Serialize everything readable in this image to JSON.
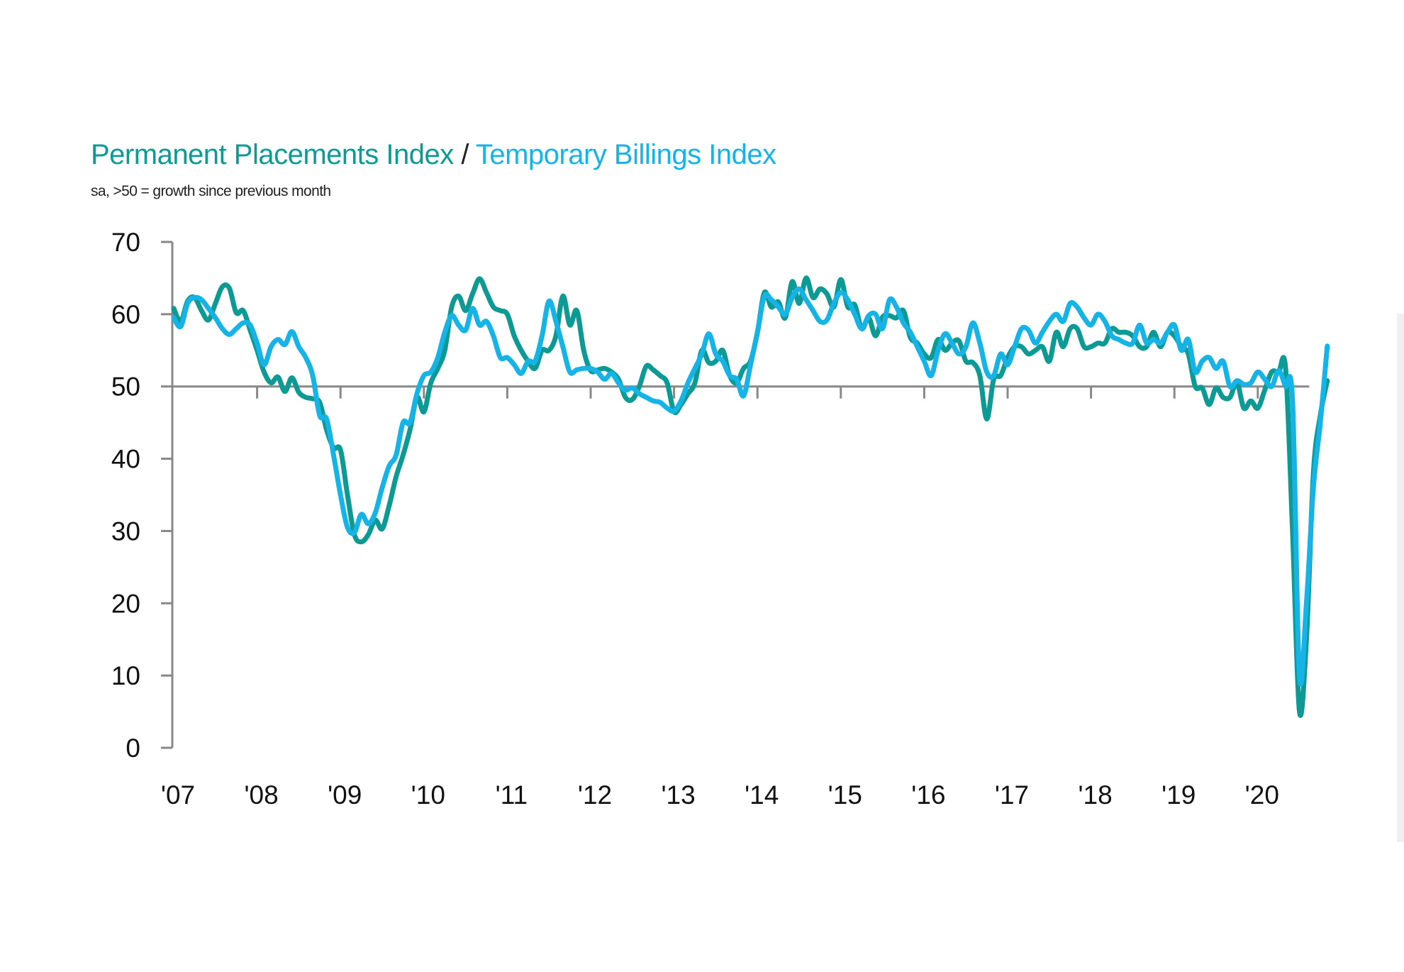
{
  "chart_data": {
    "type": "line",
    "title": "Permanent Placements Index / Temporary Billings Index",
    "title_parts": [
      {
        "text": "Permanent Placements Index",
        "color": "#0e9a94"
      },
      {
        "text": " / ",
        "color": "#222222"
      },
      {
        "text": "Temporary Billings Index",
        "color": "#16b3e6"
      }
    ],
    "subtitle": "sa, >50 = growth since previous month",
    "xlabel": "",
    "ylabel": "",
    "ylim": [
      0,
      70
    ],
    "yticks": [
      0,
      10,
      20,
      30,
      40,
      50,
      60,
      70
    ],
    "ytick_labels": [
      "0",
      "10",
      "20",
      "30",
      "40",
      "50",
      "60",
      "70"
    ],
    "x_unit": "months since Jan 2007",
    "xlim": [
      0,
      163
    ],
    "xticks": [
      0,
      12,
      24,
      36,
      48,
      60,
      72,
      84,
      96,
      108,
      120,
      132,
      144,
      156
    ],
    "xtick_labels": [
      "'07",
      "'08",
      "'09",
      "'10",
      "'11",
      "'12",
      "'13",
      "'14",
      "'15",
      "'16",
      "'17",
      "'18",
      "'19",
      "'20"
    ],
    "reference_line": 50,
    "grid": false,
    "legend": "none (series named in title by color)",
    "series": [
      {
        "name": "Permanent Placements Index",
        "color": "#0e9a94",
        "values": [
          60.8,
          59.0,
          61.8,
          62.3,
          60.5,
          59.2,
          61.5,
          63.8,
          63.6,
          60.2,
          60.5,
          57.8,
          55.0,
          52.0,
          50.5,
          51.3,
          49.3,
          51.2,
          49.2,
          48.5,
          48.3,
          47.8,
          44.0,
          41.5,
          41.2,
          35.0,
          29.5,
          28.5,
          29.5,
          31.5,
          30.3,
          33.5,
          37.5,
          40.5,
          44.0,
          48.5,
          46.5,
          50.5,
          52.5,
          55.0,
          61.0,
          62.5,
          60.5,
          62.8,
          64.9,
          63.0,
          61.0,
          60.5,
          60.0,
          57.0,
          55.0,
          53.5,
          52.5,
          55.0,
          55.0,
          57.0,
          62.5,
          58.5,
          60.5,
          55.0,
          52.2,
          52.3,
          52.5,
          52.0,
          51.0,
          48.5,
          48.2,
          50.0,
          52.8,
          52.3,
          51.5,
          50.5,
          46.5,
          47.5,
          49.0,
          50.5,
          55.0,
          53.3,
          53.5,
          55.0,
          51.5,
          50.5,
          52.5,
          53.5,
          57.5,
          63.0,
          61.0,
          61.7,
          59.5,
          64.5,
          61.5,
          65.0,
          62.3,
          63.5,
          62.8,
          61.0,
          64.8,
          61.0,
          61.3,
          58.0,
          59.5,
          57.0,
          59.6,
          59.8,
          59.5,
          60.5,
          56.8,
          56.0,
          54.5,
          54.0,
          56.5,
          55.0,
          56.0,
          56.3,
          53.5,
          53.3,
          51.5,
          45.5,
          51.0,
          51.5,
          54.0,
          55.5,
          55.5,
          54.5,
          55.0,
          55.5,
          53.5,
          57.5,
          55.5,
          58.0,
          58.0,
          55.5,
          55.5,
          56.0,
          56.0,
          58.0,
          57.5,
          57.5,
          57.0,
          55.5,
          55.5,
          57.5,
          55.5,
          57.5,
          57.0,
          55.5,
          54.5,
          50.0,
          49.8,
          47.5,
          49.8,
          48.5,
          48.5,
          50.5,
          47.0,
          48.0,
          47.0,
          49.5,
          52.0,
          52.0,
          52.5,
          30.0,
          5.0,
          15.0,
          38.0,
          46.0,
          50.8
        ]
      },
      {
        "name": "Temporary Billings Index",
        "color": "#16b3e6",
        "values": [
          59.5,
          58.3,
          61.5,
          62.3,
          62.0,
          60.8,
          59.5,
          58.0,
          57.2,
          58.0,
          58.8,
          58.5,
          56.0,
          53.0,
          55.5,
          56.5,
          55.8,
          57.6,
          55.5,
          54.0,
          51.5,
          46.0,
          45.5,
          40.5,
          35.0,
          30.5,
          29.8,
          32.3,
          31.0,
          32.5,
          36.0,
          39.0,
          40.5,
          45.0,
          45.0,
          49.0,
          51.5,
          52.0,
          54.0,
          57.5,
          59.8,
          58.5,
          57.8,
          60.8,
          58.5,
          59.0,
          57.0,
          54.0,
          54.0,
          53.0,
          51.8,
          53.5,
          53.5,
          57.0,
          61.8,
          59.0,
          55.5,
          52.0,
          52.3,
          52.5,
          52.5,
          52.0,
          51.0,
          51.8,
          50.5,
          49.5,
          49.8,
          49.0,
          48.5,
          48.0,
          47.8,
          47.0,
          46.6,
          48.0,
          50.5,
          52.5,
          54.5,
          57.3,
          54.5,
          53.5,
          51.5,
          51.0,
          48.7,
          53.0,
          57.5,
          62.5,
          62.0,
          61.0,
          60.0,
          62.3,
          63.5,
          62.0,
          60.5,
          59.0,
          59.2,
          61.5,
          63.0,
          62.0,
          60.0,
          58.0,
          59.8,
          60.0,
          58.0,
          62.0,
          61.0,
          58.8,
          57.5,
          55.5,
          53.5,
          51.5,
          55.0,
          57.3,
          56.0,
          54.5,
          55.5,
          58.8,
          56.0,
          52.0,
          51.5,
          54.5,
          53.0,
          55.5,
          58.0,
          57.8,
          56.0,
          57.5,
          59.0,
          60.0,
          59.0,
          61.5,
          61.0,
          59.5,
          58.5,
          60.0,
          59.0,
          57.0,
          56.5,
          56.0,
          56.0,
          58.5,
          56.0,
          56.5,
          56.0,
          57.5,
          58.5,
          55.0,
          56.5,
          52.0,
          53.5,
          54.0,
          52.5,
          53.5,
          50.0,
          50.8,
          50.3,
          50.5,
          52.0,
          51.0,
          50.0,
          52.2,
          50.0,
          48.0,
          10.0,
          20.0,
          36.0,
          45.0,
          55.6
        ]
      }
    ]
  }
}
